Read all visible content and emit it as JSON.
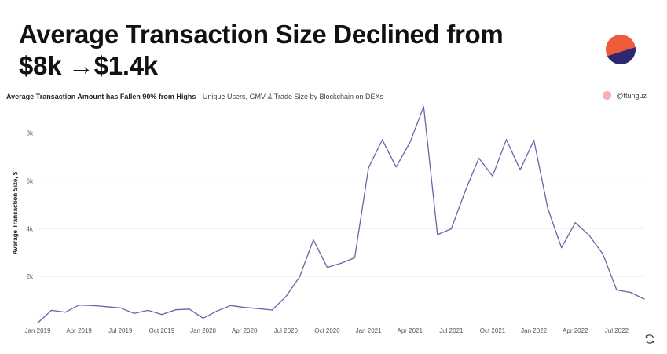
{
  "header": {
    "line1": "Average Transaction Size Declined from",
    "line2": "$8k →$1.4k"
  },
  "logo": {
    "icon": "half-circle-logo-icon",
    "top_color": "#ef5a3c",
    "bottom_color": "#2b2870"
  },
  "subheader": {
    "title": "Average Transaction Amount has Fallen 90% from Highs",
    "description": "Unique Users, GMV & Trade Size by Blockchain on DEXs"
  },
  "author": {
    "handle": "@ttunguz",
    "dot_color": "#f4b3b0"
  },
  "footer": {
    "refresh_icon": "refresh-icon"
  },
  "chart_data": {
    "type": "line",
    "ylabel": "Average Transaction Size, $",
    "xlabel": "",
    "ylim": [
      0,
      9300
    ],
    "yticks": [
      2000,
      4000,
      6000,
      8000
    ],
    "ytick_labels": [
      "2k",
      "4k",
      "6k",
      "8k"
    ],
    "x_ticks": [
      "Jan 2019",
      "Apr 2019",
      "Jul 2019",
      "Oct 2019",
      "Jan 2020",
      "Apr 2020",
      "Jul 2020",
      "Oct 2020",
      "Jan 2021",
      "Apr 2021",
      "Jul 2021",
      "Oct 2021",
      "Jan 2022",
      "Apr 2022",
      "Jul 2022"
    ],
    "x": [
      "2019-01",
      "2019-02",
      "2019-03",
      "2019-04",
      "2019-05",
      "2019-06",
      "2019-07",
      "2019-08",
      "2019-09",
      "2019-10",
      "2019-11",
      "2019-12",
      "2020-01",
      "2020-02",
      "2020-03",
      "2020-04",
      "2020-05",
      "2020-06",
      "2020-07",
      "2020-08",
      "2020-09",
      "2020-10",
      "2020-11",
      "2020-12",
      "2021-01",
      "2021-02",
      "2021-03",
      "2021-04",
      "2021-05",
      "2021-06",
      "2021-07",
      "2021-08",
      "2021-09",
      "2021-10",
      "2021-11",
      "2021-12",
      "2022-01",
      "2022-02",
      "2022-03",
      "2022-04",
      "2022-05",
      "2022-06",
      "2022-07",
      "2022-08",
      "2022-09"
    ],
    "series": [
      {
        "name": "",
        "color": "#6b63a8",
        "values": [
          50,
          580,
          500,
          800,
          780,
          730,
          680,
          450,
          580,
          400,
          600,
          630,
          250,
          550,
          780,
          700,
          650,
          590,
          1150,
          1980,
          3530,
          2380,
          2550,
          2780,
          6550,
          7720,
          6580,
          7600,
          9110,
          3750,
          3990,
          5550,
          6950,
          6200,
          7730,
          6460,
          7700,
          4850,
          3200,
          4250,
          3720,
          2930,
          1430,
          1330,
          1050
        ]
      }
    ],
    "grid": true,
    "legend": "none"
  }
}
